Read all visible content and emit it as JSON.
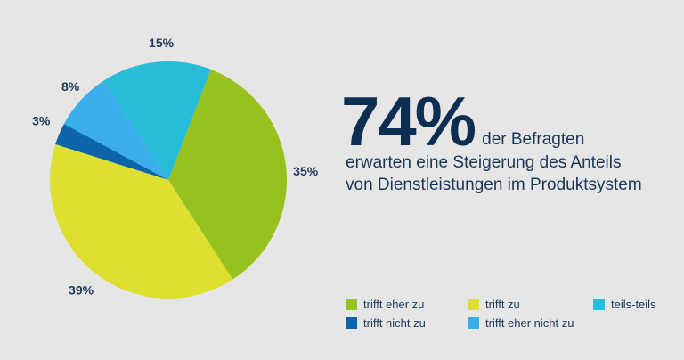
{
  "headline": {
    "big_number": "74%",
    "suffix": "der Befragten",
    "line2": "erwarten eine Steigerung des Anteils",
    "line3": "von Dienstleistungen im Produktsystem"
  },
  "chart_data": {
    "type": "pie",
    "slices": [
      {
        "name": "trifft eher zu",
        "value": 35,
        "label": "35%",
        "color": "#97c11f"
      },
      {
        "name": "trifft zu",
        "value": 39,
        "label": "39%",
        "color": "#dddf31"
      },
      {
        "name": "trifft nicht zu",
        "value": 3,
        "label": "3%",
        "color": "#0e64a8"
      },
      {
        "name": "trifft eher nicht zu",
        "value": 8,
        "label": "8%",
        "color": "#3aaee9"
      },
      {
        "name": "teils-teils",
        "value": 15,
        "label": "15%",
        "color": "#27bcd8"
      }
    ],
    "legend": [
      {
        "label": "trifft eher zu",
        "color": "#97c11f"
      },
      {
        "label": "trifft zu",
        "color": "#dddf31"
      },
      {
        "label": "teils-teils",
        "color": "#27bcd8"
      },
      {
        "label": "trifft nicht zu",
        "color": "#0e64a8"
      },
      {
        "label": "trifft eher nicht zu",
        "color": "#3aaee9"
      }
    ],
    "legend_placement": "bottom-right"
  }
}
